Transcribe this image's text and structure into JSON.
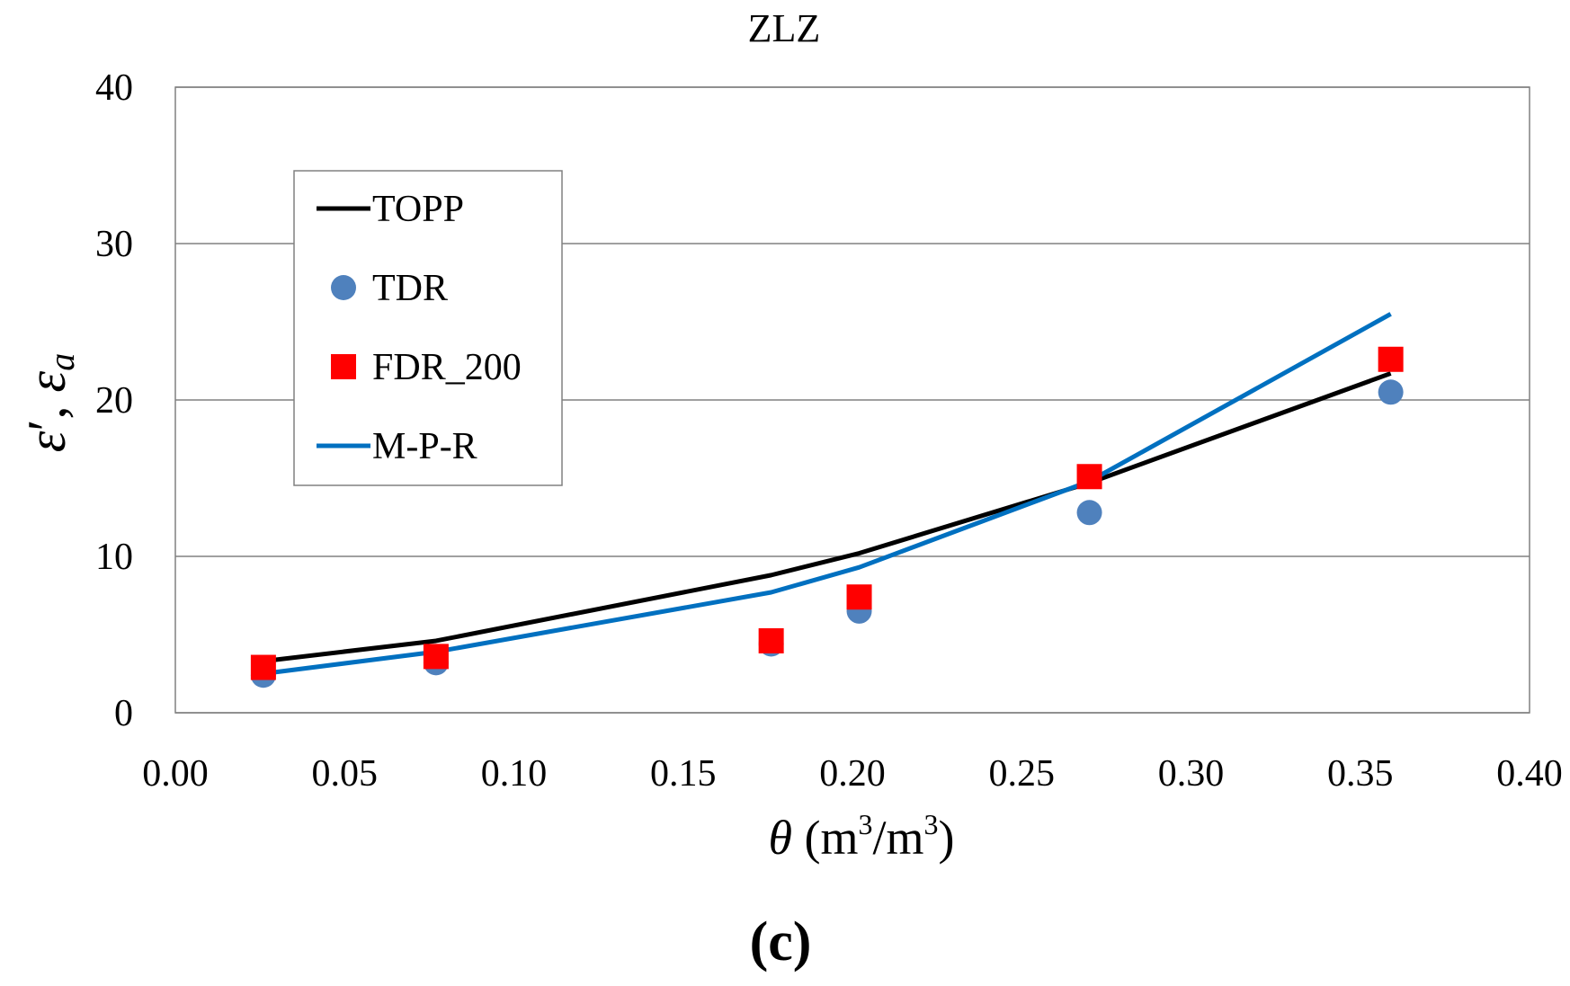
{
  "chart_data": {
    "type": "line+scatter",
    "title": "ZLZ",
    "xlabel": {
      "symbol": "θ",
      "text": "(m",
      "sup1": "3",
      "mid": "/m",
      "sup2": "3",
      "close": ")"
    },
    "ylabel": {
      "eps1": "ε",
      "prime": "′",
      "comma": ", ",
      "eps2": "ε",
      "sub": "a"
    },
    "panel_label": "(c)",
    "xlim": [
      0.0,
      0.4
    ],
    "ylim": [
      0,
      40
    ],
    "xticks": [
      "0.00",
      "0.05",
      "0.10",
      "0.15",
      "0.20",
      "0.25",
      "0.30",
      "0.35",
      "0.40"
    ],
    "yticks": [
      "0",
      "10",
      "20",
      "30",
      "40"
    ],
    "grid": "horizontal",
    "legend_position": "upper-left",
    "series": [
      {
        "name": "TOPP",
        "kind": "line",
        "color": "#000000",
        "x": [
          0.026,
          0.077,
          0.176,
          0.202,
          0.27,
          0.359
        ],
        "y": [
          3.3,
          4.6,
          8.8,
          10.2,
          14.7,
          21.7
        ]
      },
      {
        "name": "TDR",
        "kind": "circle",
        "color": "#4F81BD",
        "x": [
          0.026,
          0.077,
          0.176,
          0.202,
          0.27,
          0.359
        ],
        "y": [
          2.4,
          3.2,
          4.4,
          6.5,
          12.8,
          20.5
        ]
      },
      {
        "name": "FDR_200",
        "kind": "square",
        "color": "#FF0000",
        "x": [
          0.026,
          0.077,
          0.176,
          0.202,
          0.27,
          0.359
        ],
        "y": [
          2.9,
          3.6,
          4.6,
          7.4,
          15.1,
          22.6
        ]
      },
      {
        "name": "M-P-R",
        "kind": "line",
        "color": "#0070C0",
        "x": [
          0.026,
          0.077,
          0.176,
          0.202,
          0.27,
          0.359
        ],
        "y": [
          2.5,
          3.9,
          7.7,
          9.3,
          14.8,
          25.5
        ]
      }
    ]
  }
}
